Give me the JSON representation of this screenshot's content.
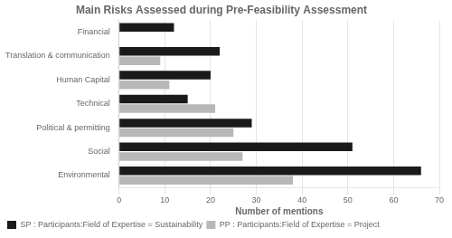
{
  "chart_data": {
    "type": "bar",
    "orientation": "horizontal",
    "title": "Main Risks Assessed during Pre-Feasibility Assessment",
    "categories": [
      "Environmental",
      "Social",
      "Political & permitting",
      "Technical",
      "Human Capital",
      "Translation & communication",
      "Financial"
    ],
    "series": [
      {
        "name": "SP : Participants:Field of Expertise = Sustainability",
        "color": "#1a1a1a",
        "values": [
          66,
          51,
          29,
          15,
          20,
          22,
          12
        ]
      },
      {
        "name": "PP : Participants:Field of Expertise = Project",
        "color": "#b8b8b8",
        "values": [
          38,
          27,
          25,
          21,
          11,
          9,
          0
        ]
      }
    ],
    "xlabel": "Number of mentions",
    "xlim": [
      0,
      70
    ],
    "xticks": [
      0,
      10,
      20,
      30,
      40,
      50,
      60,
      70
    ],
    "grid": true,
    "legend": "lower left"
  }
}
